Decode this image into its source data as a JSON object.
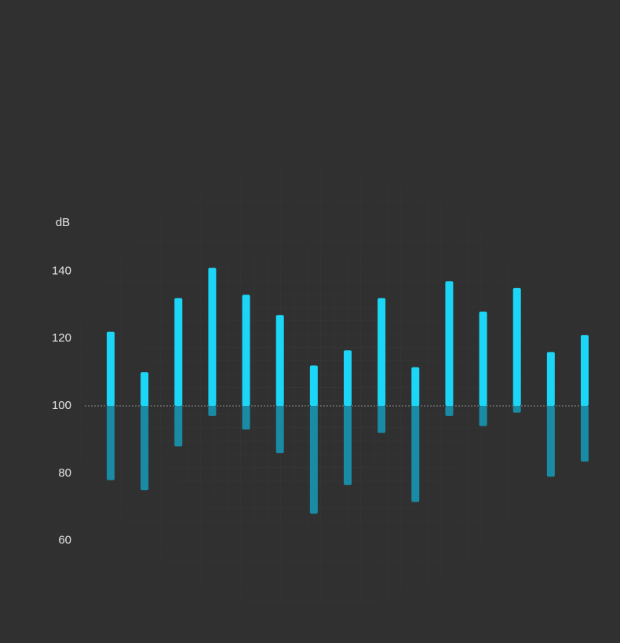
{
  "chart_data": {
    "type": "range-bar",
    "y_label": "dB",
    "baseline": 100,
    "ylim": [
      52,
      150
    ],
    "yticks": [
      60,
      80,
      100,
      120,
      140
    ],
    "categories": [
      null,
      null,
      null,
      null,
      null,
      null,
      null,
      null,
      null,
      null,
      null,
      null,
      null,
      null,
      null
    ],
    "series": [
      {
        "color": "#1a8ba5",
        "values": [
          78,
          75,
          88,
          97,
          93,
          86,
          68,
          76.5,
          92,
          71.5,
          97,
          94,
          98,
          79,
          83.5
        ]
      },
      {
        "color": "#1cd6f7",
        "values": [
          122,
          110,
          132,
          141,
          133,
          127,
          112,
          116.5,
          132,
          111.5,
          137,
          128,
          135,
          116,
          121
        ]
      }
    ]
  }
}
